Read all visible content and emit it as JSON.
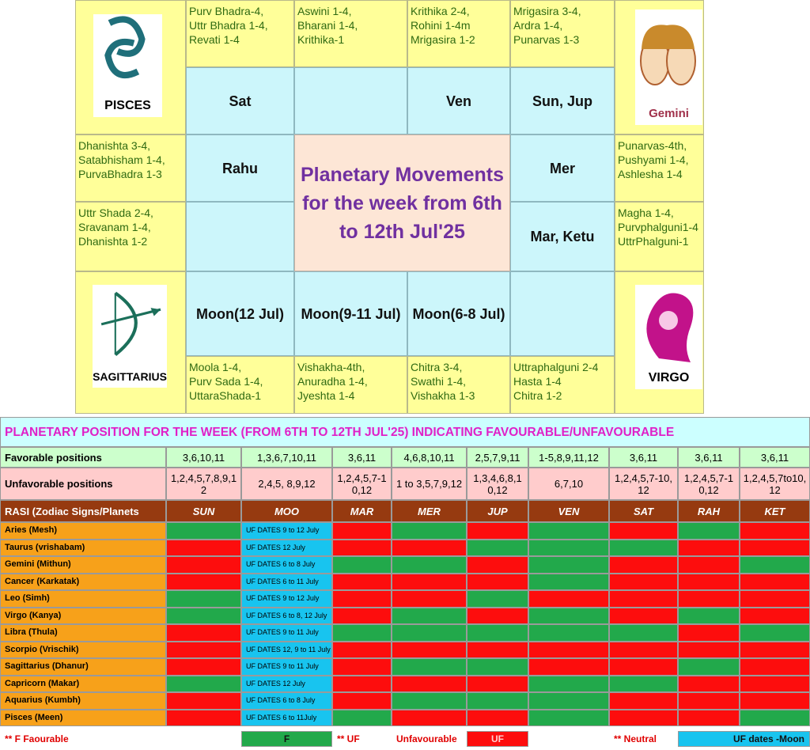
{
  "chart": {
    "title": "Planetary Movements for the week from 6th to 12th Jul'25",
    "signs": [
      "PISCES",
      "Gemini",
      "SAGITTARIUS",
      "VIRGO"
    ],
    "nakshatras": [
      "Purv Bhadra-4,\nUttr Bhadra 1-4,\nRevati 1-4",
      "Aswini 1-4,\nBharani 1-4,\nKrithika-1",
      "Krithika 2-4,\nRohini 1-4m\nMrigasira 1-2",
      "Mrigasira 3-4,\nArdra 1-4,\nPunarvas 1-3",
      "Dhanishta 3-4,\nSatabhisham 1-4,\nPurvaBhadra 1-3",
      "Punarvas-4th,\nPushyami 1-4,\nAshlesha 1-4",
      "Uttr Shada 2-4,\nSravanam 1-4,\nDhanishta 1-2",
      "Magha 1-4,\nPurvphalguni1-4\nUttrPhalguni-1",
      "Moola 1-4,\nPurv Sada 1-4,\nUttaraShada-1",
      "Vishakha-4th,\nAnuradha 1-4,\nJyeshta 1-4",
      "Chitra 3-4,\nSwathi 1-4,\nVishakha 1-3",
      "Uttraphalguni 2-4\nHasta 1-4\nChitra 1-2"
    ],
    "planets": [
      "Sat",
      "Ven",
      "Sun, Jup",
      "Rahu",
      "Mer",
      "Mar, Ketu",
      "Moon(12 Jul)",
      "Moon(9-11 Jul)",
      "Moon(6-8 Jul)"
    ]
  },
  "table": {
    "title": "PLANETARY POSITION FOR THE WEEK (FROM 6TH TO 12TH JUL'25) INDICATING FAVOURABLE/UNFAVOURABLE",
    "header": [
      "RASI (Zodiac Signs/Planets",
      "SUN",
      "MOO",
      "MAR",
      "MER",
      "JUP",
      "VEN",
      "SAT",
      "RAH",
      "KET"
    ],
    "favorable": {
      "label": "Favorable positions",
      "values": [
        "3,6,10,11",
        "1,3,6,7,10,11",
        "3,6,11",
        "4,6,8,10,11",
        "2,5,7,9,11",
        "1-5,8,9,11,12",
        "3,6,11",
        "3,6,11",
        "3,6,11"
      ]
    },
    "unfavorable": {
      "label": "Unfavorable positions",
      "values": [
        "1,2,4,5,7,8,9,12",
        "2,4,5, 8,9,12",
        "1,2,4,5,7-10,12",
        "1 to 3,5,7,9,12",
        "1,3,4,6,8,10,12",
        "6,7,10",
        "1,2,4,5,7-10,12",
        "1,2,4,5,7-10,12",
        "1,2,4,5,7to10,12"
      ]
    },
    "status_colors": {
      "F": "#22a94b",
      "UF": "#fd0d0d"
    },
    "rows": [
      {
        "rasi": "Aries (Mesh)",
        "moon": "UF DATES 9 to 12 July",
        "status": [
          "F",
          "UF",
          "F",
          "UF",
          "F",
          "UF",
          "F",
          "UF"
        ]
      },
      {
        "rasi": "Taurus (vrishabam)",
        "moon": "UF DATES 12 July",
        "status": [
          "UF",
          "UF",
          "UF",
          "F",
          "F",
          "F",
          "UF",
          "UF"
        ]
      },
      {
        "rasi": "Gemini (Mithun)",
        "moon": "UF DATES 6 to 8 July",
        "status": [
          "UF",
          "F",
          "F",
          "UF",
          "F",
          "UF",
          "UF",
          "F"
        ]
      },
      {
        "rasi": "Cancer (Karkatak)",
        "moon": "UF DATES  6 to 11 July",
        "status": [
          "UF",
          "UF",
          "UF",
          "UF",
          "F",
          "UF",
          "UF",
          "UF"
        ]
      },
      {
        "rasi": "Leo (Simh)",
        "moon": "UF DATES 9 to 12 July",
        "status": [
          "F",
          "UF",
          "UF",
          "F",
          "UF",
          "UF",
          "UF",
          "UF"
        ]
      },
      {
        "rasi": "Virgo (Kanya)",
        "moon": "UF DATES 6 to 8, 12 July",
        "status": [
          "F",
          "UF",
          "F",
          "UF",
          "F",
          "UF",
          "F",
          "UF"
        ]
      },
      {
        "rasi": "Libra (Thula)",
        "moon": "UF DATES 9 to 11 July",
        "status": [
          "UF",
          "F",
          "F",
          "F",
          "F",
          "F",
          "UF",
          "F"
        ]
      },
      {
        "rasi": "Scorpio (Vrischik)",
        "moon": "UF DATES 12, 9 to 11 July",
        "status": [
          "UF",
          "UF",
          "UF",
          "UF",
          "UF",
          "UF",
          "UF",
          "UF"
        ]
      },
      {
        "rasi": "Sagittarius (Dhanur)",
        "moon": "UF DATES 9 to 11 July",
        "status": [
          "UF",
          "UF",
          "F",
          "F",
          "UF",
          "UF",
          "F",
          "UF"
        ]
      },
      {
        "rasi": "Capricorn (Makar)",
        "moon": "UF DATES 12 July",
        "status": [
          "F",
          "UF",
          "UF",
          "UF",
          "F",
          "F",
          "UF",
          "UF"
        ]
      },
      {
        "rasi": "Aquarius (Kumbh)",
        "moon": "UF DATES 6 to 8 July",
        "status": [
          "UF",
          "UF",
          "F",
          "F",
          "F",
          "UF",
          "UF",
          "UF"
        ]
      },
      {
        "rasi": "Pisces (Meen)",
        "moon": "UF DATES  6 to 11July",
        "status": [
          "UF",
          "F",
          "UF",
          "UF",
          "F",
          "UF",
          "UF",
          "F"
        ]
      }
    ],
    "legend": [
      "**  F    Faourable",
      "F",
      "** UF",
      "Unfavourable",
      "UF",
      "** Neutral",
      "UF dates -Moon"
    ]
  }
}
